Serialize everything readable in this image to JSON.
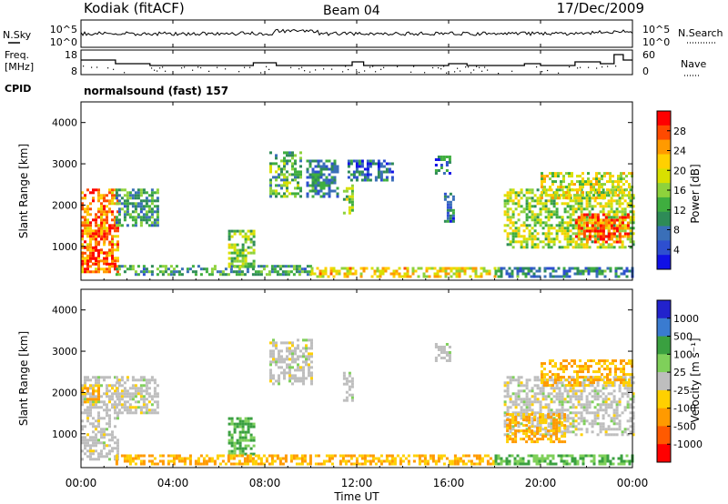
{
  "header": {
    "site": "Kodiak (fitACF)",
    "beam": "Beam 04",
    "date": "17/Dec/2009"
  },
  "strip_panels": {
    "nsky": {
      "left_label": "N.Sky",
      "right_label": "N.Search",
      "ticks_left": [
        "10^5",
        "10^0"
      ],
      "ticks_right": [
        "10^5",
        "10^0"
      ]
    },
    "freq": {
      "left_label_line1": "Freq.",
      "left_label_line2": "[MHz]",
      "right_label": "Nave",
      "ticks_left": [
        "18",
        "8"
      ],
      "ticks_right": [
        "60",
        "0"
      ]
    },
    "cpid": {
      "label": "CPID",
      "text": "normalsound (fast) 157"
    }
  },
  "colorbars": {
    "power": {
      "title": "Power [dB]",
      "ticks": [
        "28",
        "24",
        "20",
        "16",
        "12",
        "8",
        "4"
      ],
      "colors": [
        "#ff0000",
        "#ff4a00",
        "#ff9a00",
        "#ffd000",
        "#d8e000",
        "#8ed23c",
        "#3fae3f",
        "#2e8b57",
        "#3a6fb8",
        "#2e4fd0",
        "#1010e6"
      ]
    },
    "velocity": {
      "title": "Velocity [m s⁻¹]",
      "ticks": [
        "1000",
        "500",
        "100",
        "25",
        "-25",
        "-100",
        "-500",
        "-1000"
      ],
      "colors": [
        "#2222cc",
        "#3a7bd0",
        "#3aa040",
        "#7fd05a",
        "#bebebe",
        "#ffd000",
        "#ff9a00",
        "#ff5a00",
        "#ff0000"
      ]
    }
  },
  "axes": {
    "x_ticks": [
      "00:00",
      "04:00",
      "08:00",
      "12:00",
      "16:00",
      "20:00",
      "00:00"
    ],
    "xlabel": "Time UT",
    "ylabel": "Slant Range [km]",
    "y_ticks": [
      "4000",
      "3000",
      "2000",
      "1000"
    ]
  },
  "chart_data": [
    {
      "type": "heatmap",
      "title": "",
      "xlabel": "Time UT",
      "ylabel": "Slant Range [km]",
      "xlim": [
        0,
        24
      ],
      "ylim": [
        180,
        4500
      ],
      "colorbar": "Power [dB]",
      "colorbar_range": [
        0,
        30
      ],
      "regions": [
        {
          "t": [
            0.0,
            1.6
          ],
          "r": [
            400,
            2400
          ],
          "value": 24
        },
        {
          "t": [
            0.0,
            1.5
          ],
          "r": [
            600,
            1000
          ],
          "value": 28
        },
        {
          "t": [
            0.6,
            1.2
          ],
          "r": [
            1100,
            1600
          ],
          "value": 26
        },
        {
          "t": [
            1.5,
            3.3
          ],
          "r": [
            1500,
            2400
          ],
          "value": 10
        },
        {
          "t": [
            1.5,
            10.0
          ],
          "r": [
            300,
            550
          ],
          "value": 10
        },
        {
          "t": [
            6.4,
            7.5
          ],
          "r": [
            500,
            1400
          ],
          "value": 14
        },
        {
          "t": [
            8.2,
            9.6
          ],
          "r": [
            2200,
            3300
          ],
          "value": 12
        },
        {
          "t": [
            9.8,
            11.2
          ],
          "r": [
            2200,
            3100
          ],
          "value": 8
        },
        {
          "t": [
            11.4,
            11.8
          ],
          "r": [
            1800,
            2500
          ],
          "value": 16
        },
        {
          "t": [
            11.6,
            13.6
          ],
          "r": [
            2600,
            3100
          ],
          "value": 6
        },
        {
          "t": [
            10.0,
            18.0
          ],
          "r": [
            250,
            500
          ],
          "value": 20
        },
        {
          "t": [
            15.4,
            16.0
          ],
          "r": [
            2800,
            3200
          ],
          "value": 6
        },
        {
          "t": [
            15.8,
            16.2
          ],
          "r": [
            1600,
            2300
          ],
          "value": 6
        },
        {
          "t": [
            18.4,
            24.0
          ],
          "r": [
            1000,
            2400
          ],
          "value": 16
        },
        {
          "t": [
            21.5,
            23.8
          ],
          "r": [
            1100,
            1800
          ],
          "value": 26
        },
        {
          "t": [
            20.0,
            24.0
          ],
          "r": [
            2200,
            2800
          ],
          "value": 18
        },
        {
          "t": [
            18.0,
            24.0
          ],
          "r": [
            250,
            500
          ],
          "value": 8
        }
      ]
    },
    {
      "type": "heatmap",
      "title": "",
      "xlabel": "Time UT",
      "ylabel": "Slant Range [km]",
      "xlim": [
        0,
        24
      ],
      "ylim": [
        180,
        4500
      ],
      "colorbar": "Velocity [m s-1]",
      "colorbar_range": [
        -1000,
        1000
      ],
      "regions": [
        {
          "t": [
            0.0,
            1.6
          ],
          "r": [
            400,
            2400
          ],
          "value": 0
        },
        {
          "t": [
            0.0,
            0.8
          ],
          "r": [
            1800,
            2200
          ],
          "value": -100
        },
        {
          "t": [
            1.5,
            3.3
          ],
          "r": [
            1500,
            2400
          ],
          "value": 0
        },
        {
          "t": [
            6.4,
            7.5
          ],
          "r": [
            500,
            1400
          ],
          "value": 100
        },
        {
          "t": [
            8.2,
            10.0
          ],
          "r": [
            2200,
            3300
          ],
          "value": 0
        },
        {
          "t": [
            11.4,
            11.8
          ],
          "r": [
            1800,
            2500
          ],
          "value": 0
        },
        {
          "t": [
            1.5,
            18.0
          ],
          "r": [
            250,
            500
          ],
          "value": -100
        },
        {
          "t": [
            15.4,
            16.0
          ],
          "r": [
            2800,
            3200
          ],
          "value": 0
        },
        {
          "t": [
            18.4,
            24.0
          ],
          "r": [
            1000,
            2400
          ],
          "value": 0
        },
        {
          "t": [
            18.5,
            21.0
          ],
          "r": [
            800,
            1500
          ],
          "value": -100
        },
        {
          "t": [
            20.0,
            24.0
          ],
          "r": [
            2200,
            2800
          ],
          "value": -100
        },
        {
          "t": [
            18.0,
            24.0
          ],
          "r": [
            250,
            500
          ],
          "value": 100
        }
      ]
    }
  ]
}
